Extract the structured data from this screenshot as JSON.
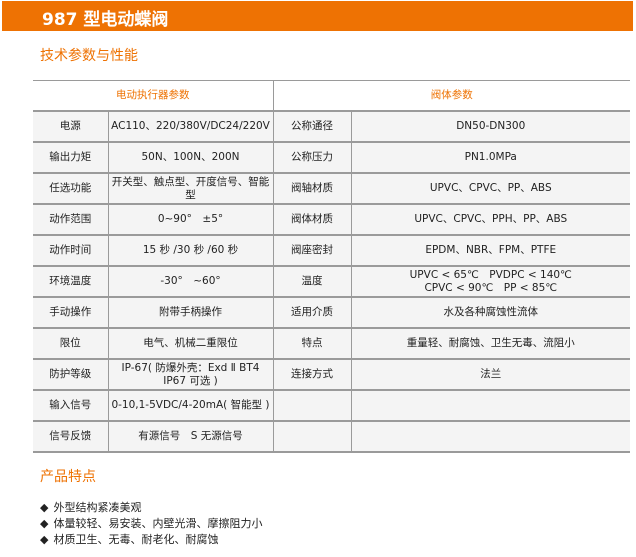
{
  "banner": {
    "title": "987 型电动蝶阀"
  },
  "section_specs": "技术参数与性能",
  "table": {
    "headers": [
      "电动执行器参数",
      "阀体参数"
    ],
    "rows": [
      [
        "电源",
        "AC110、220/380V/DC24/220V",
        "公称通径",
        "DN50-DN300"
      ],
      [
        "输出力矩",
        "50N、100N、200N",
        "公称压力",
        "PN1.0MPa"
      ],
      [
        "任选功能",
        "开关型、触点型、开度信号、智能型",
        "阀轴材质",
        "UPVC、CPVC、PP、ABS"
      ],
      [
        "动作范围",
        "0~90°　±5°",
        "阀体材质",
        "UPVC、CPVC、PPH、PP、ABS"
      ],
      [
        "动作时间",
        "15 秒 /30 秒 /60 秒",
        "阀座密封",
        "EPDM、NBR、FPM、PTFE"
      ],
      [
        "环境温度",
        "-30°　~60°",
        "温度",
        "UPVC < 65℃　PVDPC < 140℃\nCPVC < 90℃　PP < 85℃"
      ],
      [
        "手动操作",
        "附带手柄操作",
        "适用介质",
        "水及各种腐蚀性流体"
      ],
      [
        "限位",
        "电气、机械二重限位",
        "特点",
        "重量轻、耐腐蚀、卫生无毒、流阻小"
      ],
      [
        "防护等级",
        "IP-67( 防爆外壳：Exd Ⅱ BT4  IP67 可选 )",
        "连接方式",
        "法兰"
      ],
      [
        "输入信号",
        "0-10,1-5VDC/4-20mA( 智能型 )",
        "",
        ""
      ],
      [
        "信号反馈",
        "有源信号　S 无源信号",
        "",
        ""
      ]
    ]
  },
  "section_features": "产品特点",
  "features": {
    "bullet": "◆",
    "items": [
      "外型结构紧凑美观",
      "体量较轻、易安装、内壁光滑、摩擦阻力小",
      "材质卫生、无毒、耐老化、耐腐蚀"
    ]
  }
}
